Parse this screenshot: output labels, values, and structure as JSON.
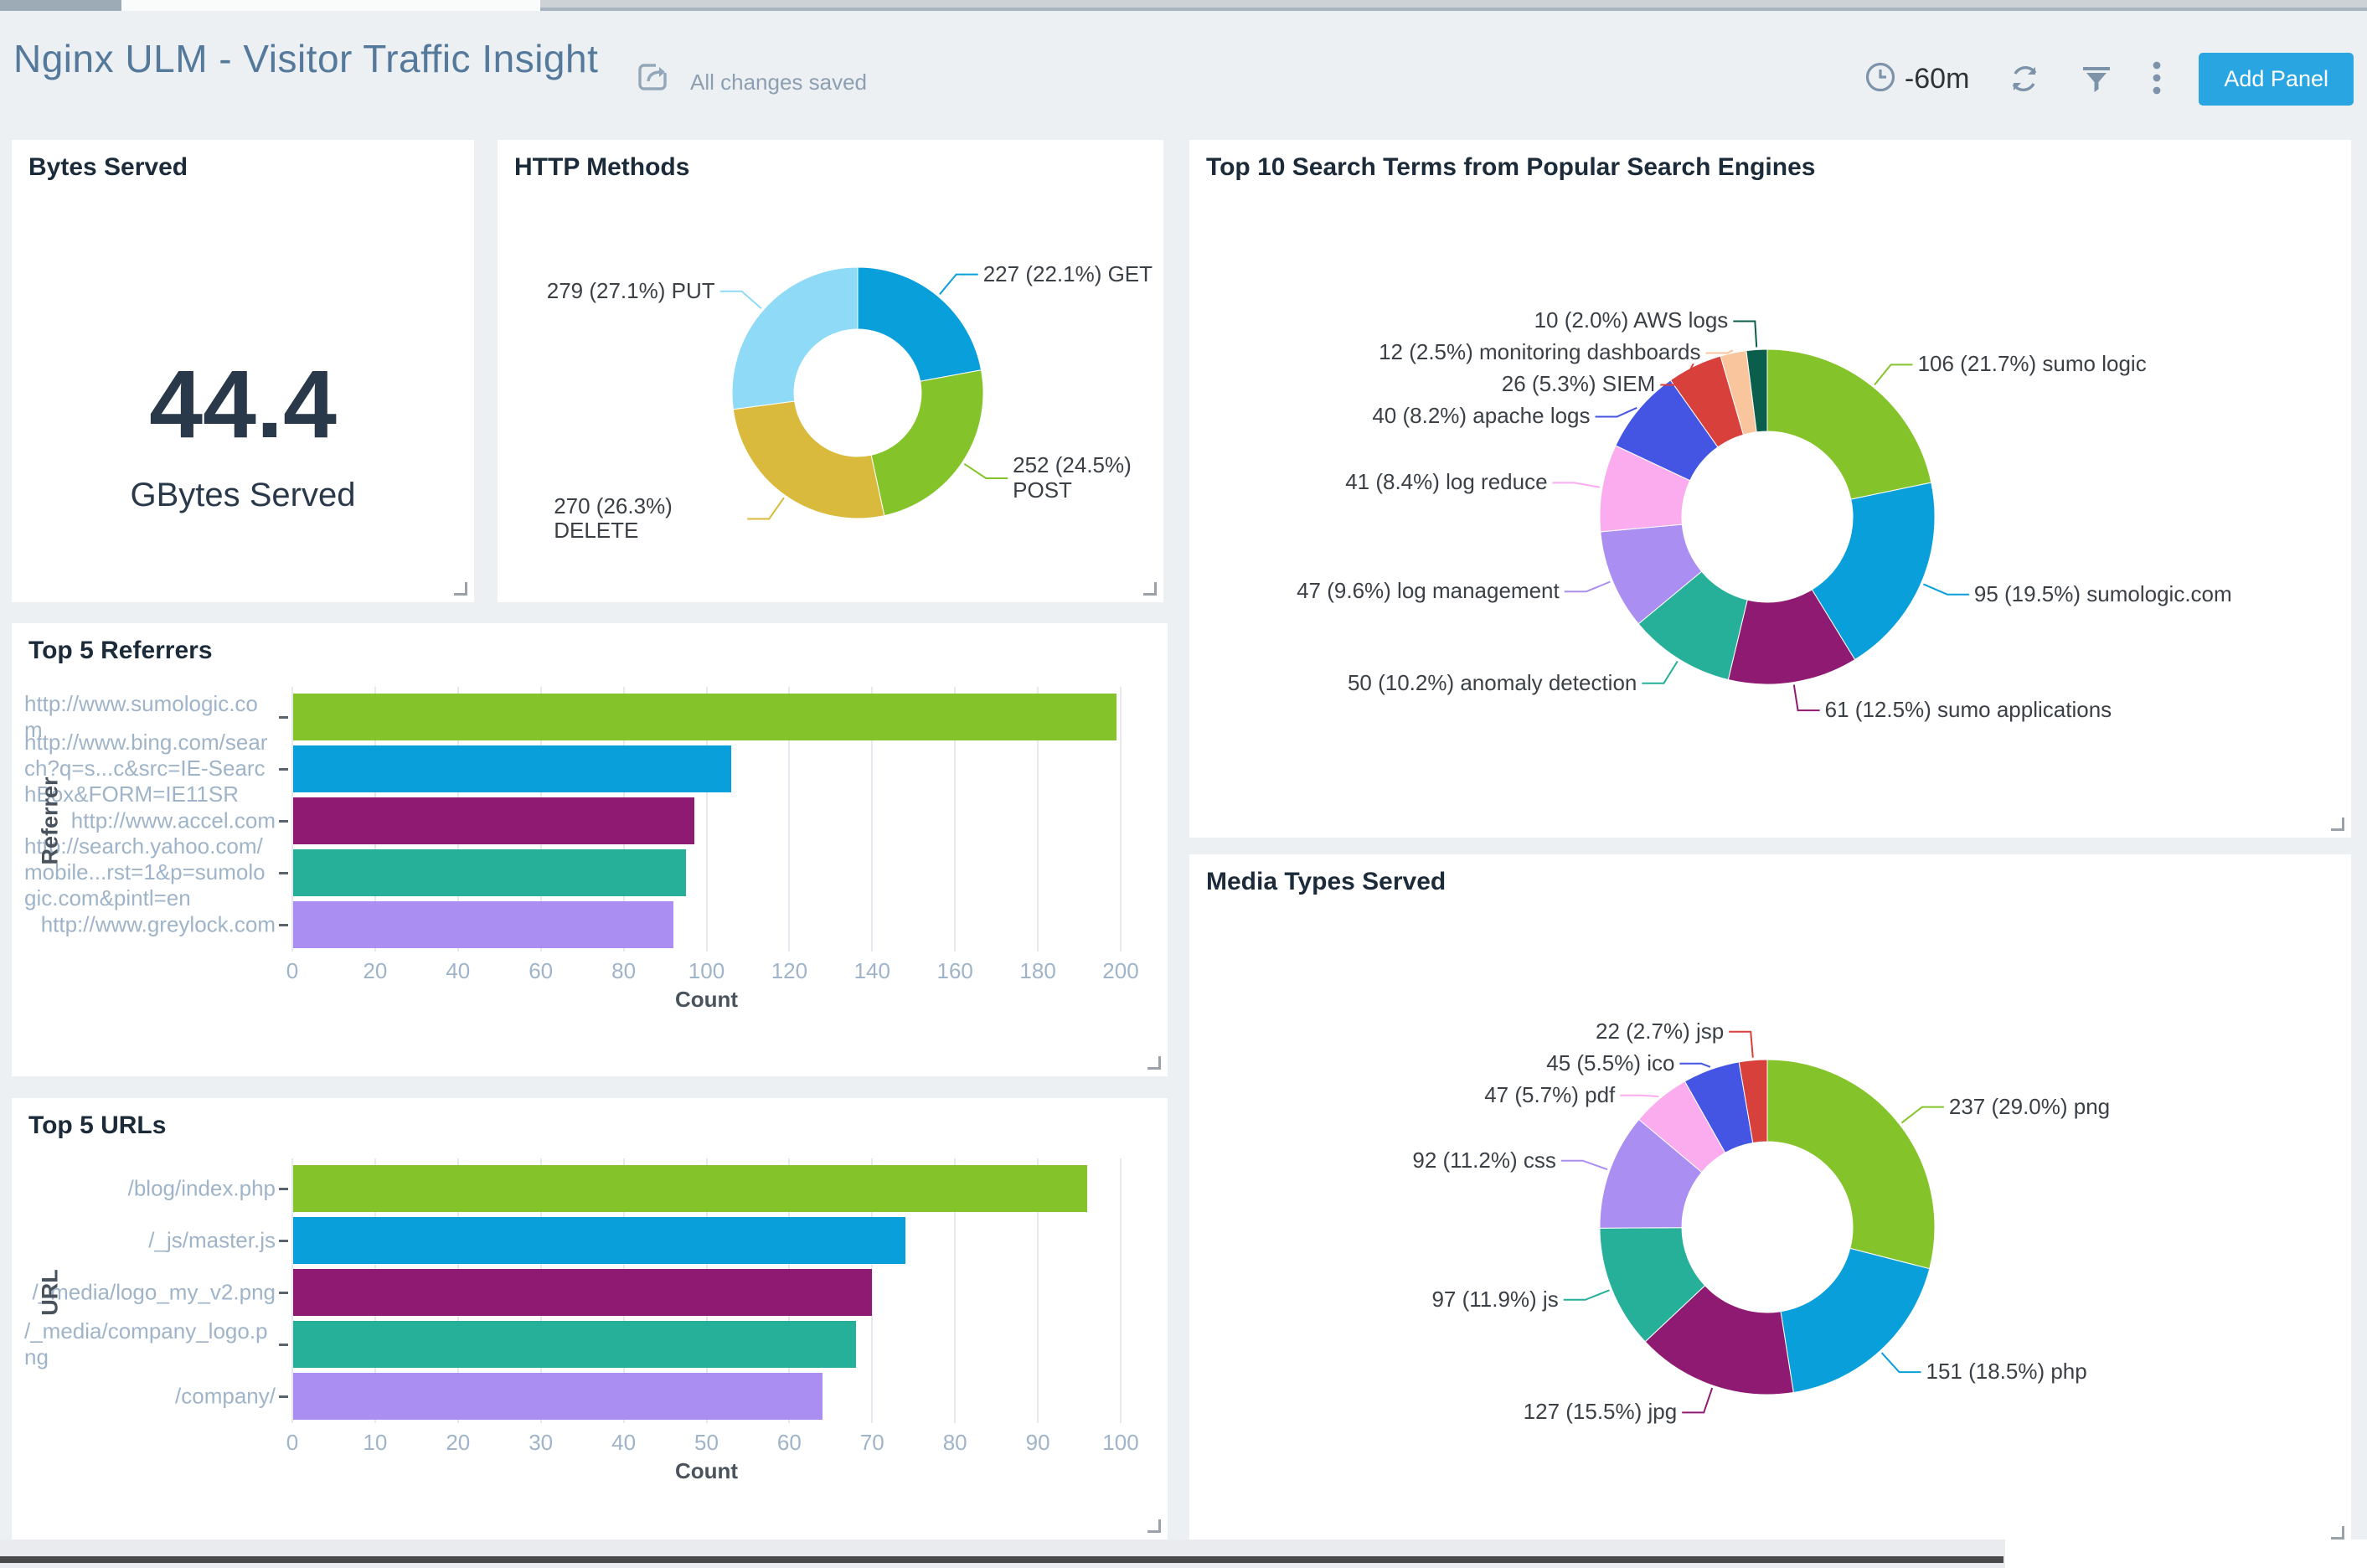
{
  "header": {
    "title": "Nginx ULM - Visitor Traffic Insight",
    "save_status": "All changes saved",
    "time_range": "-60m",
    "add_panel_label": "Add Panel",
    "accent_color": "#29A5E1",
    "icon_color": "#7C93A9"
  },
  "panels": {
    "bytes_served": {
      "title": "Bytes Served",
      "value": "44.4",
      "unit": "GBytes Served"
    },
    "http_methods": {
      "title": "HTTP Methods",
      "chart": {
        "type": "donut",
        "slices": [
          {
            "name": "GET",
            "value": 227,
            "pct": "22.1",
            "color": "#099FDA"
          },
          {
            "name": "POST",
            "value": 252,
            "pct": "24.5",
            "color": "#85C32B"
          },
          {
            "name": "DELETE",
            "value": 270,
            "pct": "26.3",
            "color": "#D9BA3C"
          },
          {
            "name": "PUT",
            "value": 279,
            "pct": "27.1",
            "color": "#8FDBF7"
          }
        ]
      }
    },
    "search_terms": {
      "title": "Top 10 Search Terms from Popular Search Engines",
      "chart": {
        "type": "donut",
        "slices": [
          {
            "name": "sumo logic",
            "value": 106,
            "pct": "21.7",
            "color": "#85C32B"
          },
          {
            "name": "sumologic.com",
            "value": 95,
            "pct": "19.5",
            "color": "#099FDA"
          },
          {
            "name": "sumo applications",
            "value": 61,
            "pct": "12.5",
            "color": "#8E1A71"
          },
          {
            "name": "anomaly detection",
            "value": 50,
            "pct": "10.2",
            "color": "#27B099"
          },
          {
            "name": "log management",
            "value": 47,
            "pct": "9.6",
            "color": "#AA8EF2"
          },
          {
            "name": "log reduce",
            "value": 41,
            "pct": "8.4",
            "color": "#FBACEE"
          },
          {
            "name": "apache logs",
            "value": 40,
            "pct": "8.2",
            "color": "#4355E2"
          },
          {
            "name": "SIEM",
            "value": 26,
            "pct": "5.3",
            "color": "#D8403C"
          },
          {
            "name": "monitoring dashboards",
            "value": 12,
            "pct": "2.5",
            "color": "#F9C59C"
          },
          {
            "name": "AWS logs",
            "value": 10,
            "pct": "2.0",
            "color": "#0B5E4B"
          }
        ]
      }
    },
    "referrers": {
      "title": "Top 5 Referrers",
      "chart": {
        "type": "bar",
        "xlabel": "Count",
        "ylabel": "Referrer",
        "xmax": 200,
        "xtick_step": 20,
        "categories": [
          "http://www.sumologic.com",
          "http://www.bing.com/search?q=s...c&src=IE-SearchBox&FORM=IE11SR",
          "http://www.accel.com",
          "http://search.yahoo.com/mobile...rst=1&p=sumologic.com&pintl=en",
          "http://www.greylock.com"
        ],
        "values": [
          199,
          106,
          97,
          95,
          92
        ],
        "colors": [
          "#85C32B",
          "#099FDA",
          "#8E1A71",
          "#27B099",
          "#AA8EF2"
        ]
      }
    },
    "urls": {
      "title": "Top 5 URLs",
      "chart": {
        "type": "bar",
        "xlabel": "Count",
        "ylabel": "URL",
        "xmax": 100,
        "xtick_step": 10,
        "categories": [
          "/blog/index.php",
          "/_js/master.js",
          "/_media/logo_my_v2.png",
          "/_media/company_logo.png",
          "/company/"
        ],
        "values": [
          96,
          74,
          70,
          68,
          64
        ],
        "colors": [
          "#85C32B",
          "#099FDA",
          "#8E1A71",
          "#27B099",
          "#AA8EF2"
        ]
      }
    },
    "media_types": {
      "title": "Media Types Served",
      "chart": {
        "type": "donut",
        "slices": [
          {
            "name": "png",
            "value": 237,
            "pct": "29.0",
            "color": "#85C32B"
          },
          {
            "name": "php",
            "value": 151,
            "pct": "18.5",
            "color": "#099FDA"
          },
          {
            "name": "jpg",
            "value": 127,
            "pct": "15.5",
            "color": "#8E1A71"
          },
          {
            "name": "js",
            "value": 97,
            "pct": "11.9",
            "color": "#27B099"
          },
          {
            "name": "css",
            "value": 92,
            "pct": "11.2",
            "color": "#AA8EF2"
          },
          {
            "name": "pdf",
            "value": 47,
            "pct": "5.7",
            "color": "#FBACEE"
          },
          {
            "name": "ico",
            "value": 45,
            "pct": "5.5",
            "color": "#4355E2"
          },
          {
            "name": "jsp",
            "value": 22,
            "pct": "2.7",
            "color": "#D8403C"
          }
        ]
      }
    }
  },
  "chart_data": [
    {
      "type": "stat",
      "title": "Bytes Served",
      "value": 44.4,
      "unit": "GBytes Served"
    },
    {
      "type": "pie",
      "title": "HTTP Methods",
      "categories": [
        "GET",
        "POST",
        "DELETE",
        "PUT"
      ],
      "values": [
        227,
        252,
        270,
        279
      ],
      "percents": [
        22.1,
        24.5,
        26.3,
        27.1
      ]
    },
    {
      "type": "pie",
      "title": "Top 10 Search Terms from Popular Search Engines",
      "categories": [
        "sumo logic",
        "sumologic.com",
        "sumo applications",
        "anomaly detection",
        "log management",
        "log reduce",
        "apache logs",
        "SIEM",
        "monitoring dashboards",
        "AWS logs"
      ],
      "values": [
        106,
        95,
        61,
        50,
        47,
        41,
        40,
        26,
        12,
        10
      ],
      "percents": [
        21.7,
        19.5,
        12.5,
        10.2,
        9.6,
        8.4,
        8.2,
        5.3,
        2.5,
        2.0
      ]
    },
    {
      "type": "bar",
      "title": "Top 5 Referrers",
      "xlabel": "Count",
      "ylabel": "Referrer",
      "xlim": [
        0,
        200
      ],
      "categories": [
        "http://www.sumologic.com",
        "http://www.bing.com/search?q=s...c&src=IE-SearchBox&FORM=IE11SR",
        "http://www.accel.com",
        "http://search.yahoo.com/mobile...rst=1&p=sumologic.com&pintl=en",
        "http://www.greylock.com"
      ],
      "values": [
        199,
        106,
        97,
        95,
        92
      ]
    },
    {
      "type": "bar",
      "title": "Top 5 URLs",
      "xlabel": "Count",
      "ylabel": "URL",
      "xlim": [
        0,
        100
      ],
      "categories": [
        "/blog/index.php",
        "/_js/master.js",
        "/_media/logo_my_v2.png",
        "/_media/company_logo.png",
        "/company/"
      ],
      "values": [
        96,
        74,
        70,
        68,
        64
      ]
    },
    {
      "type": "pie",
      "title": "Media Types Served",
      "categories": [
        "png",
        "php",
        "jpg",
        "js",
        "css",
        "pdf",
        "ico",
        "jsp"
      ],
      "values": [
        237,
        151,
        127,
        97,
        92,
        47,
        45,
        22
      ],
      "percents": [
        29.0,
        18.5,
        15.5,
        11.9,
        11.2,
        5.7,
        5.5,
        2.7
      ]
    }
  ]
}
